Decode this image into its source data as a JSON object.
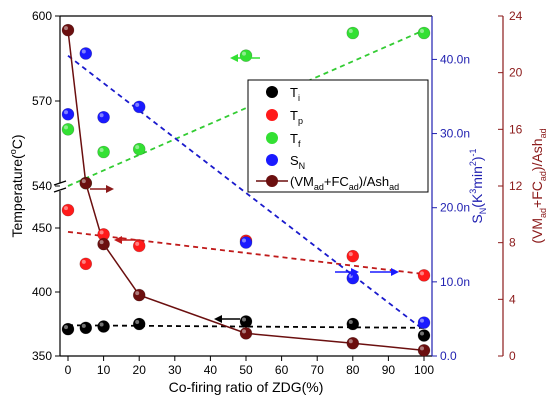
{
  "chart_data": {
    "type": "scatter",
    "xlabel": "Co-firing ratio of ZDG(%)",
    "xlim": [
      -2,
      102
    ],
    "xticks": [
      0,
      10,
      20,
      30,
      40,
      50,
      60,
      70,
      80,
      90,
      100
    ],
    "left_axis": {
      "label": "Temperature(°C)",
      "label_parts": {
        "base": "Temperature(",
        "sup": "o",
        "tail": "C)"
      },
      "broken": true,
      "ticks": [
        350,
        400,
        450,
        540,
        570,
        600
      ]
    },
    "right_axis_1": {
      "label": "S_N(K^3min^2)^-1",
      "label_parts": {
        "main": "S",
        "sub": "N",
        "mid": "(K",
        "sup1": "3",
        "mid2": "min",
        "sup2": "2",
        "end": ")",
        "sup3": "-1"
      },
      "ticks": [
        0,
        10,
        20,
        30,
        40
      ],
      "tick_labels": [
        "0.0",
        "10.0n",
        "20.0n",
        "30.0n",
        "40.0n"
      ],
      "color": "#1f1fb0"
    },
    "right_axis_2": {
      "label": "(VM_ad+FC_ad)/Ash_ad",
      "label_parts": {
        "p1": "(VM",
        "s1": "ad",
        "p2": "+FC",
        "s2": "ad",
        "p3": ")/Ash",
        "s3": "ad"
      },
      "ticks": [
        0,
        4,
        8,
        12,
        16,
        20,
        24
      ],
      "color": "#8b1a1a"
    },
    "legend": {
      "placement": "upper-right-inner",
      "entries": [
        {
          "label": "T",
          "sub": "i",
          "color": "#000000"
        },
        {
          "label": "T",
          "sub": "p",
          "color": "#ff1a1a"
        },
        {
          "label": "T",
          "sub": "f",
          "color": "#33e033"
        },
        {
          "label": "S",
          "sub": "N",
          "color": "#1a1aff"
        },
        {
          "label": "(VM",
          "sub": "ad",
          "label2": "+FC",
          "sub2": "ad",
          "label3": ")/Ash",
          "sub3": "ad",
          "color": "#6b0f0f"
        }
      ]
    },
    "series": [
      {
        "name": "Ti",
        "axis": "left",
        "color": "#000000",
        "x": [
          0,
          5,
          10,
          20,
          50,
          80,
          100
        ],
        "y": [
          371,
          372,
          373,
          375,
          377,
          375,
          366
        ]
      },
      {
        "name": "Tp",
        "axis": "left",
        "color": "#ff1a1a",
        "x": [
          0,
          5,
          10,
          20,
          50,
          80,
          100
        ],
        "y": [
          464,
          422,
          445,
          436,
          440,
          428,
          413
        ]
      },
      {
        "name": "Tf",
        "axis": "left",
        "color": "#33e033",
        "x": [
          0,
          5,
          10,
          20,
          50,
          80,
          100
        ],
        "y": [
          560,
          541,
          552,
          553,
          586,
          594,
          594
        ]
      },
      {
        "name": "SN",
        "axis": "right1",
        "color": "#1a1aff",
        "x": [
          0,
          5,
          10,
          20,
          50,
          80,
          100
        ],
        "y": [
          32.6,
          40.8,
          32.2,
          33.6,
          15.3,
          10.5,
          4.5
        ]
      },
      {
        "name": "(VMad+FCad)/Ashad",
        "axis": "right2",
        "color": "#6b0f0f",
        "x": [
          0,
          5,
          10,
          20,
          50,
          80,
          100
        ],
        "y": [
          23.0,
          12.2,
          7.9,
          4.3,
          1.6,
          0.9,
          0.4
        ]
      }
    ],
    "trend_lines": [
      {
        "name": "Ti",
        "axis": "left",
        "color": "#000000",
        "from": [
          0,
          374
        ],
        "to": [
          100,
          372
        ]
      },
      {
        "name": "Tp",
        "axis": "left",
        "color": "#c01a1a",
        "from": [
          0,
          447
        ],
        "to": [
          100,
          414
        ]
      },
      {
        "name": "Tf",
        "axis": "left",
        "color": "#33cc33",
        "from": [
          0,
          540
        ],
        "to": [
          100,
          595
        ]
      },
      {
        "name": "SN",
        "axis": "right1",
        "color": "#1a1acc",
        "from": [
          0,
          40.5
        ],
        "to": [
          100,
          3.5
        ]
      }
    ]
  }
}
